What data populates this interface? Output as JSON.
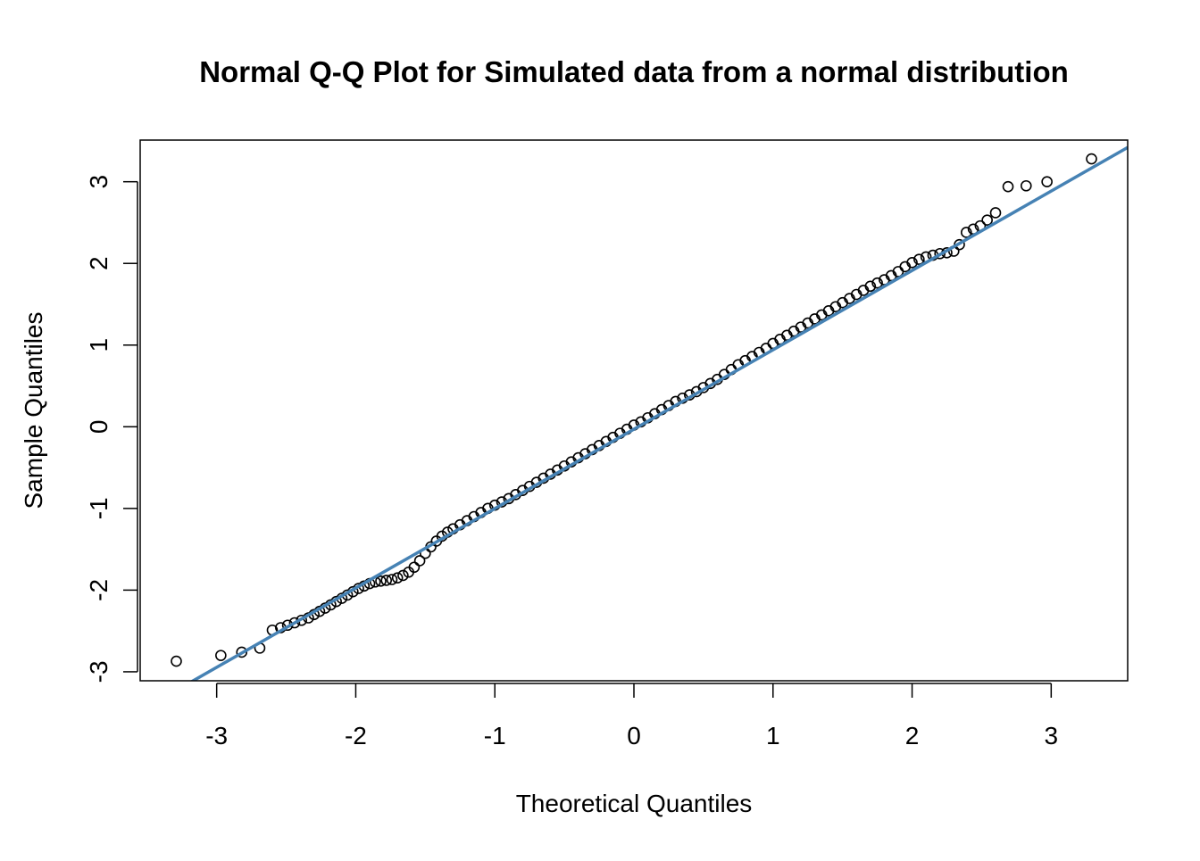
{
  "chart_data": {
    "type": "scatter",
    "title": "Normal Q-Q Plot for Simulated data from a normal distribution",
    "xlabel": "Theoretical Quantiles",
    "ylabel": "Sample Quantiles",
    "xlim": [
      -3.55,
      3.55
    ],
    "ylim": [
      -3.11,
      3.51
    ],
    "x_ticks": [
      -3,
      -2,
      -1,
      0,
      1,
      2,
      3
    ],
    "x_tick_labels": [
      "-3",
      "-2",
      "-1",
      "0",
      "1",
      "2",
      "3"
    ],
    "y_ticks": [
      -3,
      -2,
      -1,
      0,
      1,
      2,
      3
    ],
    "y_tick_labels": [
      "-3",
      "-2",
      "-1",
      "0",
      "1",
      "2",
      "3"
    ],
    "grid": false,
    "legend": "none",
    "point_style": "open-circle",
    "line_color": "#4682B4",
    "point_color": "#000000",
    "series": [
      {
        "kind": "points",
        "x": [
          -3.29,
          -2.97,
          -2.82,
          -2.69,
          -2.6,
          -2.54,
          -2.49,
          -2.44,
          -2.39,
          -2.34,
          -2.3,
          -2.26,
          -2.22,
          -2.18,
          -2.14,
          -2.1,
          -2.06,
          -2.02,
          -1.98,
          -1.94,
          -1.9,
          -1.86,
          -1.82,
          -1.78,
          -1.74,
          -1.7,
          -1.66,
          -1.62,
          -1.58,
          -1.54,
          -1.5,
          -1.46,
          -1.42,
          -1.38,
          -1.34,
          -1.3,
          -1.25,
          -1.2,
          -1.15,
          -1.1,
          -1.05,
          -1.0,
          -0.95,
          -0.9,
          -0.85,
          -0.8,
          -0.75,
          -0.7,
          -0.65,
          -0.6,
          -0.55,
          -0.5,
          -0.45,
          -0.4,
          -0.35,
          -0.3,
          -0.25,
          -0.2,
          -0.15,
          -0.1,
          -0.05,
          0.0,
          0.05,
          0.1,
          0.15,
          0.2,
          0.25,
          0.3,
          0.35,
          0.4,
          0.45,
          0.5,
          0.55,
          0.6,
          0.65,
          0.7,
          0.75,
          0.8,
          0.85,
          0.9,
          0.95,
          1.0,
          1.05,
          1.1,
          1.15,
          1.2,
          1.25,
          1.3,
          1.35,
          1.4,
          1.45,
          1.5,
          1.55,
          1.6,
          1.65,
          1.7,
          1.75,
          1.8,
          1.85,
          1.9,
          1.95,
          2.0,
          2.05,
          2.1,
          2.15,
          2.2,
          2.25,
          2.3,
          2.34,
          2.39,
          2.44,
          2.49,
          2.54,
          2.6,
          2.69,
          2.82,
          2.97,
          3.29
        ],
        "y": [
          -2.87,
          -2.8,
          -2.76,
          -2.71,
          -2.49,
          -2.46,
          -2.43,
          -2.4,
          -2.37,
          -2.34,
          -2.3,
          -2.26,
          -2.22,
          -2.18,
          -2.14,
          -2.1,
          -2.06,
          -2.02,
          -1.98,
          -1.95,
          -1.92,
          -1.9,
          -1.89,
          -1.88,
          -1.87,
          -1.85,
          -1.82,
          -1.78,
          -1.72,
          -1.64,
          -1.55,
          -1.47,
          -1.4,
          -1.34,
          -1.29,
          -1.25,
          -1.2,
          -1.15,
          -1.1,
          -1.05,
          -1.0,
          -0.96,
          -0.92,
          -0.88,
          -0.83,
          -0.78,
          -0.73,
          -0.68,
          -0.63,
          -0.58,
          -0.53,
          -0.48,
          -0.43,
          -0.38,
          -0.33,
          -0.28,
          -0.23,
          -0.18,
          -0.13,
          -0.08,
          -0.03,
          0.02,
          0.06,
          0.11,
          0.16,
          0.21,
          0.26,
          0.31,
          0.35,
          0.39,
          0.43,
          0.48,
          0.53,
          0.58,
          0.64,
          0.7,
          0.76,
          0.81,
          0.86,
          0.91,
          0.96,
          1.02,
          1.07,
          1.12,
          1.17,
          1.22,
          1.27,
          1.32,
          1.37,
          1.42,
          1.47,
          1.52,
          1.57,
          1.62,
          1.67,
          1.72,
          1.76,
          1.8,
          1.85,
          1.9,
          1.96,
          2.01,
          2.05,
          2.08,
          2.1,
          2.12,
          2.13,
          2.15,
          2.23,
          2.38,
          2.42,
          2.46,
          2.53,
          2.62,
          2.94,
          2.95,
          3.0,
          3.28
        ]
      },
      {
        "kind": "line",
        "x": [
          -3.55,
          3.55
        ],
        "y": [
          -3.48,
          3.42
        ]
      }
    ]
  }
}
